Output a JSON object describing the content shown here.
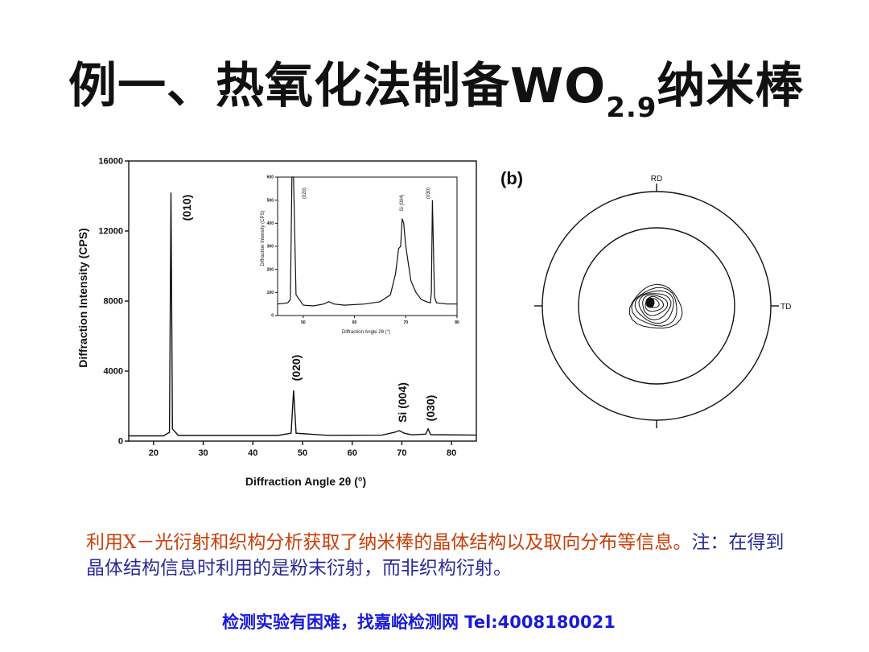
{
  "slide": {
    "title_main": "例一、热氧化法制备WO",
    "title_sub": "2.9",
    "title_end": "纳米棒",
    "caption_orange": "利用X－光衍射和织构分析获取了纳米棒的晶体结构以及取向分布等信息。",
    "caption_blue": "注：在得到晶体结构信息时利用的是粉末衍射，而非织构衍射。",
    "footer": "检测实验有困难，找嘉峪检测网 Tel:4008180021"
  },
  "chart_data": [
    {
      "type": "line",
      "ylabel": "Diffraction Intensity (CPS)",
      "xlabel": "Diffraction Angle 2θ (°)",
      "xlim": [
        15,
        85
      ],
      "ylim": [
        0,
        16000
      ],
      "x_ticks": [
        20,
        30,
        40,
        50,
        60,
        70,
        80
      ],
      "y_ticks": [
        0,
        4000,
        8000,
        12000,
        16000
      ],
      "series": [
        {
          "x": [
            15,
            22,
            23.2,
            23.5,
            23.8,
            25,
            45,
            47.7,
            48.2,
            48.7,
            55,
            66,
            68.5,
            69.5,
            70.5,
            72,
            74.8,
            75.3,
            75.8,
            85
          ],
          "y": [
            300,
            300,
            500,
            14200,
            700,
            320,
            320,
            450,
            2900,
            450,
            330,
            340,
            500,
            600,
            450,
            360,
            400,
            700,
            370,
            340
          ]
        }
      ],
      "annotations": [
        "(010)",
        "(020)",
        "Si (004)",
        "(030)"
      ]
    },
    {
      "type": "line",
      "ylabel": "Diffraction Intensity (CPS)",
      "xlabel": "Diffraction Angle 2θ (°)",
      "xlim": [
        45,
        80
      ],
      "ylim": [
        0,
        600
      ],
      "x_ticks": [
        50,
        60,
        70,
        80
      ],
      "y_ticks": [
        0,
        100,
        200,
        300,
        400,
        500,
        600
      ],
      "series": [
        {
          "x": [
            45,
            47,
            47.5,
            47.8,
            48.1,
            48.6,
            50,
            52,
            54,
            55,
            56,
            58,
            62,
            65,
            67,
            68,
            68.6,
            69.0,
            69.3,
            69.6,
            70,
            71,
            72,
            73,
            74,
            74.8,
            75.0,
            75.2,
            75.6,
            76,
            78,
            80
          ],
          "y": [
            50,
            55,
            70,
            600,
            600,
            90,
            45,
            42,
            50,
            60,
            50,
            45,
            50,
            60,
            90,
            180,
            290,
            300,
            420,
            400,
            300,
            150,
            100,
            70,
            60,
            55,
            100,
            500,
            80,
            55,
            50,
            50
          ]
        }
      ],
      "annotations": [
        "(020)",
        "Si (004)",
        "(030)"
      ]
    }
  ],
  "pole_figure": {
    "panel_label": "(b)",
    "rd_label": "RD",
    "td_label": "TD"
  }
}
